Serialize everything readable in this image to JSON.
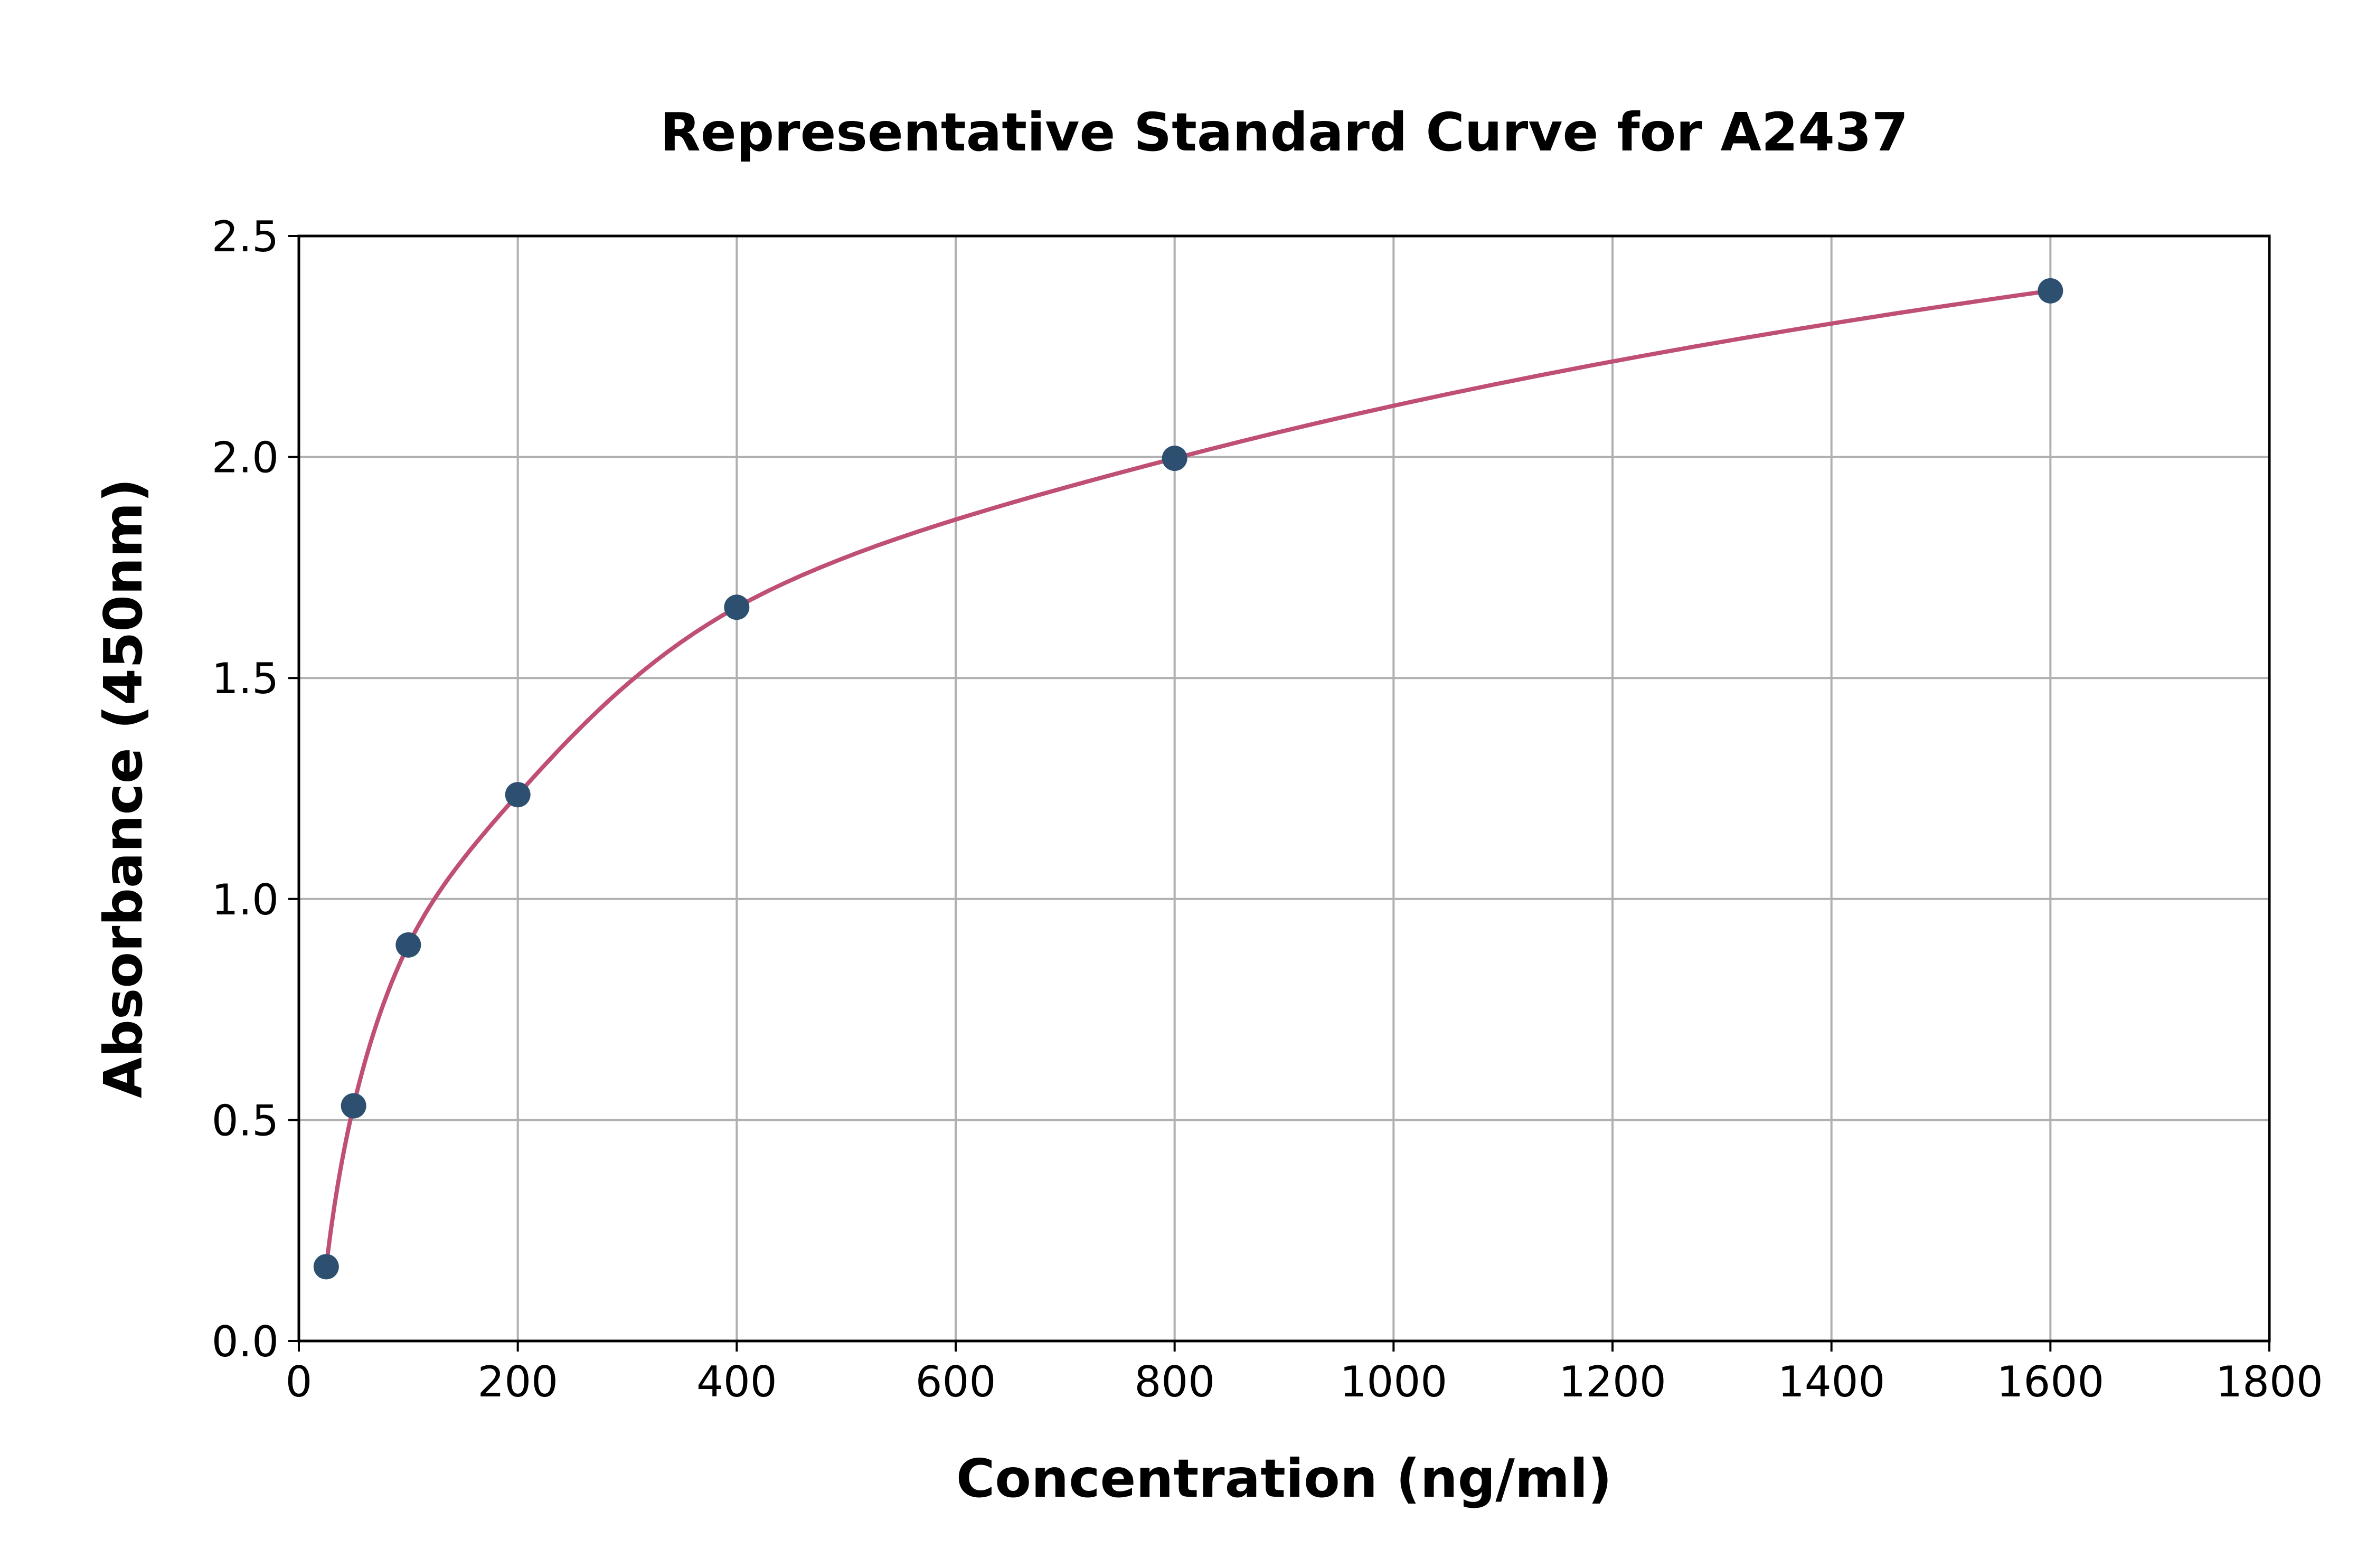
{
  "chart_data": {
    "type": "scatter",
    "title": "Representative Standard Curve for A2437",
    "xlabel": "Concentration (ng/ml)",
    "ylabel": "Absorbance (450nm)",
    "xlim": [
      0,
      1800
    ],
    "ylim": [
      0,
      2.5
    ],
    "xticks": [
      "0",
      "200",
      "400",
      "600",
      "800",
      "1000",
      "1200",
      "1400",
      "1600",
      "1800"
    ],
    "yticks": [
      "0.0",
      "0.5",
      "1.0",
      "1.5",
      "2.0",
      "2.5"
    ],
    "grid": true,
    "series": [
      {
        "x": [
          25,
          50,
          100,
          200,
          400,
          800,
          1600
        ],
        "y": [
          0.168,
          0.532,
          0.896,
          1.236,
          1.66,
          1.997,
          2.376
        ],
        "marker_color": "#2e5070",
        "fit_line_color": "#c04f74"
      }
    ]
  }
}
